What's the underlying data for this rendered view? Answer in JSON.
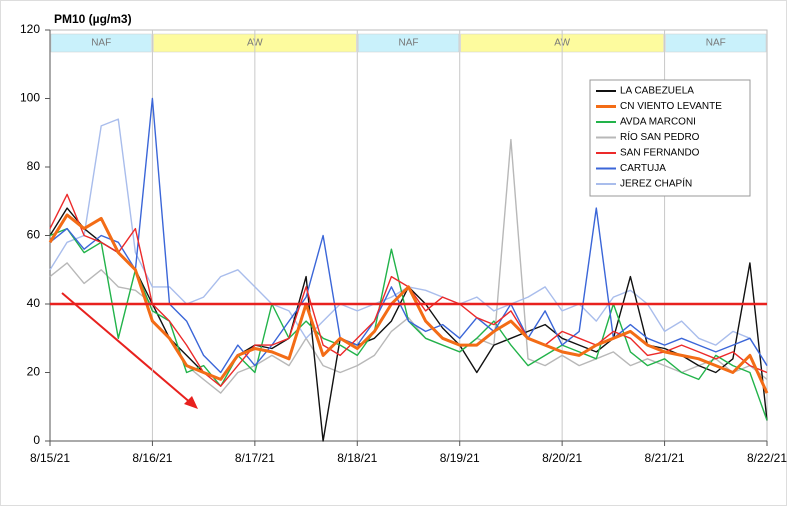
{
  "chart_data": {
    "type": "line",
    "title": "PM10 (µg/m3)",
    "categories": [
      "8/15/21",
      null,
      null,
      null,
      null,
      null,
      "8/16/21",
      null,
      null,
      null,
      null,
      null,
      "8/17/21",
      null,
      null,
      null,
      null,
      null,
      "8/18/21",
      null,
      null,
      null,
      null,
      null,
      "8/19/21",
      null,
      null,
      null,
      null,
      null,
      "8/20/21",
      null,
      null,
      null,
      null,
      null,
      "8/21/21",
      null,
      null,
      null,
      null,
      null,
      "8/22/21"
    ],
    "ylim": [
      0,
      120
    ],
    "yticks": [
      0,
      20,
      40,
      60,
      80,
      100,
      120
    ],
    "grid": true,
    "legend": "upper right",
    "threshold": {
      "value": 40,
      "color": "#e8211e"
    },
    "periods": [
      {
        "label": "NAF",
        "start": "8/15/21",
        "end": "8/16/21",
        "color": "#c9f1fb"
      },
      {
        "label": "AW",
        "start": "8/16/21",
        "end": "8/18/21",
        "color": "#fdfb9e"
      },
      {
        "label": "NAF",
        "start": "8/18/21",
        "end": "8/19/21",
        "color": "#c9f1fb"
      },
      {
        "label": "AW",
        "start": "8/19/21",
        "end": "8/21/21",
        "color": "#fdfb9e"
      },
      {
        "label": "NAF",
        "start": "8/21/21",
        "end": "8/22/21",
        "color": "#c9f1fb"
      }
    ],
    "series": [
      {
        "name": "LA CABEZUELA",
        "color": "#111111",
        "values": [
          60,
          68,
          62,
          58,
          55,
          50,
          40,
          30,
          25,
          20,
          18,
          25,
          28,
          27,
          30,
          48,
          0,
          30,
          28,
          30,
          35,
          45,
          40,
          33,
          28,
          20,
          28,
          30,
          32,
          34,
          30,
          28,
          26,
          30,
          48,
          28,
          27,
          25,
          22,
          20,
          24,
          52,
          6
        ]
      },
      {
        "name": "CN VIENTO LEVANTE",
        "color": "#f36c16",
        "values": [
          58,
          66,
          62,
          65,
          55,
          50,
          35,
          30,
          22,
          20,
          18,
          25,
          27,
          26,
          24,
          40,
          25,
          30,
          27,
          32,
          40,
          45,
          35,
          30,
          28,
          28,
          32,
          35,
          30,
          28,
          26,
          25,
          28,
          30,
          32,
          28,
          26,
          25,
          24,
          22,
          20,
          25,
          14
        ]
      },
      {
        "name": "AVDA MARCONI",
        "color": "#22b34a",
        "values": [
          60,
          62,
          55,
          58,
          30,
          50,
          38,
          35,
          20,
          22,
          16,
          25,
          20,
          40,
          30,
          35,
          30,
          28,
          25,
          32,
          56,
          35,
          30,
          28,
          26,
          30,
          35,
          28,
          22,
          25,
          28,
          26,
          24,
          40,
          26,
          22,
          24,
          20,
          18,
          25,
          22,
          20,
          6
        ]
      },
      {
        "name": "RÍO SAN PEDRO",
        "color": "#b8b8b8",
        "values": [
          48,
          52,
          46,
          50,
          45,
          44,
          40,
          30,
          22,
          18,
          14,
          20,
          22,
          25,
          22,
          30,
          22,
          20,
          22,
          25,
          32,
          36,
          30,
          28,
          26,
          30,
          28,
          88,
          24,
          22,
          25,
          22,
          24,
          26,
          22,
          24,
          22,
          20,
          22,
          24,
          20,
          22,
          18
        ]
      },
      {
        "name": "SAN FERNANDO",
        "color": "#ec2a2a",
        "values": [
          62,
          72,
          60,
          58,
          55,
          62,
          40,
          35,
          28,
          20,
          16,
          22,
          28,
          28,
          30,
          45,
          28,
          25,
          30,
          35,
          48,
          45,
          38,
          42,
          40,
          36,
          34,
          38,
          30,
          28,
          32,
          30,
          28,
          32,
          30,
          25,
          26,
          28,
          26,
          24,
          26,
          22,
          20
        ]
      },
      {
        "name": "CARTUJA",
        "color": "#3b66d8",
        "values": [
          58,
          62,
          56,
          60,
          58,
          50,
          100,
          40,
          35,
          25,
          20,
          28,
          22,
          28,
          35,
          42,
          60,
          30,
          28,
          35,
          45,
          35,
          32,
          34,
          30,
          36,
          32,
          40,
          30,
          38,
          28,
          32,
          68,
          30,
          34,
          30,
          28,
          30,
          28,
          26,
          28,
          30,
          22
        ]
      },
      {
        "name": "JEREZ CHAPÍN",
        "color": "#a9bdec",
        "values": [
          50,
          58,
          60,
          92,
          94,
          55,
          45,
          45,
          40,
          42,
          48,
          50,
          45,
          40,
          38,
          30,
          35,
          40,
          38,
          40,
          42,
          45,
          44,
          42,
          40,
          42,
          38,
          40,
          42,
          45,
          38,
          40,
          35,
          42,
          44,
          40,
          32,
          35,
          30,
          28,
          32,
          30,
          22
        ]
      }
    ]
  }
}
